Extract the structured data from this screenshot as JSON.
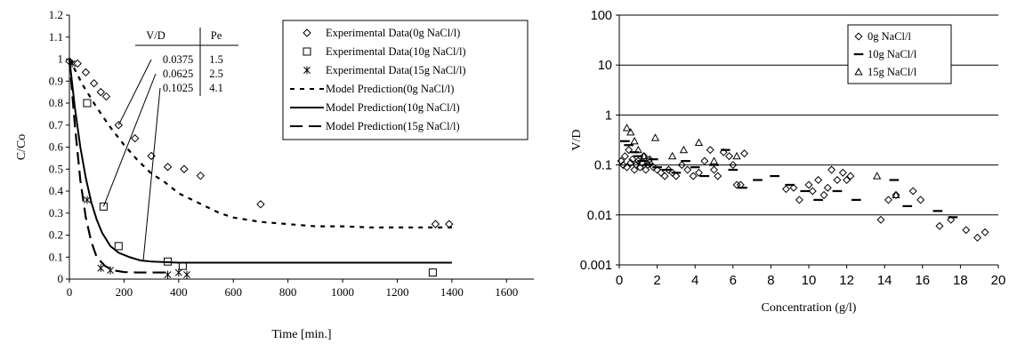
{
  "chart_data": [
    {
      "type": "scatter",
      "xlabel": "Time [min.]",
      "ylabel": "C/Co",
      "xlim": [
        0,
        1700
      ],
      "ylim": [
        0,
        1.2
      ],
      "xticks": [
        0,
        200,
        400,
        600,
        800,
        1000,
        1200,
        1400,
        1600
      ],
      "yticks": [
        0,
        0.1,
        0.2,
        0.3,
        0.4,
        0.5,
        0.6,
        0.7,
        0.8,
        0.9,
        1,
        1.1,
        1.2
      ],
      "grid": false,
      "legend_placement": "top-right",
      "series": [
        {
          "name": "Experimental Data(0g NaCl/l)",
          "kind": "scatter",
          "marker": "diamond",
          "x": [
            0,
            30,
            60,
            90,
            115,
            135,
            180,
            240,
            300,
            360,
            420,
            480,
            700,
            1340,
            1390
          ],
          "y": [
            0.99,
            0.98,
            0.94,
            0.89,
            0.85,
            0.83,
            0.7,
            0.64,
            0.56,
            0.51,
            0.5,
            0.47,
            0.34,
            0.25,
            0.25
          ]
        },
        {
          "name": "Experimental Data(10g NaCl/l)",
          "kind": "scatter",
          "marker": "square",
          "x": [
            65,
            125,
            180,
            360,
            415,
            1330
          ],
          "y": [
            0.8,
            0.33,
            0.15,
            0.08,
            0.06,
            0.03
          ]
        },
        {
          "name": "Experimental Data(15g NaCl/l)",
          "kind": "scatter",
          "marker": "asterisk",
          "x": [
            10,
            65,
            115,
            150,
            360,
            400,
            430
          ],
          "y": [
            0.98,
            0.36,
            0.05,
            0.04,
            0.02,
            0.03,
            0.02
          ]
        },
        {
          "name": "Model Prediction(0g NaCl/l)",
          "kind": "line",
          "dash": "short",
          "x": [
            0,
            50,
            100,
            150,
            200,
            250,
            300,
            350,
            400,
            450,
            500,
            550,
            600,
            700,
            800,
            900,
            1000,
            1100,
            1200,
            1300,
            1400
          ],
          "y": [
            1.0,
            0.88,
            0.78,
            0.69,
            0.61,
            0.54,
            0.48,
            0.44,
            0.39,
            0.36,
            0.33,
            0.3,
            0.28,
            0.26,
            0.25,
            0.24,
            0.24,
            0.235,
            0.235,
            0.235,
            0.235
          ]
        },
        {
          "name": "Model Prediction(10g NaCl/l)",
          "kind": "line",
          "dash": "solid",
          "x": [
            0,
            20,
            40,
            60,
            80,
            100,
            120,
            150,
            180,
            220,
            260,
            300,
            400,
            600,
            1000,
            1400
          ],
          "y": [
            1.0,
            0.78,
            0.6,
            0.46,
            0.35,
            0.27,
            0.21,
            0.15,
            0.12,
            0.1,
            0.085,
            0.08,
            0.075,
            0.075,
            0.075,
            0.075
          ]
        },
        {
          "name": "Model Prediction(15g NaCl/l)",
          "kind": "line",
          "dash": "long",
          "x": [
            0,
            20,
            40,
            60,
            80,
            100,
            130,
            160,
            200,
            250,
            300,
            360
          ],
          "y": [
            1.0,
            0.7,
            0.45,
            0.28,
            0.17,
            0.1,
            0.06,
            0.04,
            0.032,
            0.03,
            0.03,
            0.03
          ]
        }
      ],
      "inset_table": {
        "headers": [
          "V/D",
          "Pe"
        ],
        "rows": [
          [
            "0.0375",
            "1.5"
          ],
          [
            "0.0625",
            "2.5"
          ],
          [
            "0.1025",
            "4.1"
          ]
        ],
        "pointers": [
          {
            "row": 0,
            "x": 180,
            "y": 0.7
          },
          {
            "row": 1,
            "x": 125,
            "y": 0.33
          },
          {
            "row": 2,
            "x": 270,
            "y": 0.08
          }
        ]
      }
    },
    {
      "type": "scatter",
      "xlabel": "Concentration (g/l)",
      "ylabel": "V/D",
      "xlim": [
        0,
        20
      ],
      "ylim": [
        0.001,
        100
      ],
      "yscale": "log",
      "xticks": [
        0,
        2,
        4,
        6,
        8,
        10,
        12,
        14,
        16,
        18,
        20
      ],
      "yticks": [
        0.001,
        0.01,
        0.1,
        1,
        10,
        100
      ],
      "ytick_labels": [
        "0.001",
        "0.01",
        "0.1",
        "1",
        "10",
        "100"
      ],
      "grid": "horizontal",
      "legend_placement": "top-right",
      "series": [
        {
          "name": "0g NaCl/l",
          "marker": "diamond",
          "x": [
            0.1,
            0.2,
            0.3,
            0.4,
            0.5,
            0.6,
            0.7,
            0.8,
            0.9,
            1.0,
            1.1,
            1.2,
            1.3,
            1.4,
            1.5,
            1.6,
            1.8,
            2.0,
            2.2,
            2.4,
            2.6,
            2.8,
            3.0,
            3.3,
            3.6,
            3.9,
            4.2,
            4.5,
            4.8,
            5.0,
            5.2,
            5.5,
            5.8,
            6.0,
            6.2,
            6.4,
            6.6,
            8.8,
            9.2,
            9.5,
            10.0,
            10.2,
            10.5,
            10.8,
            11.0,
            11.2,
            11.5,
            11.8,
            12.0,
            12.2,
            13.8,
            14.2,
            14.6,
            15.5,
            15.9,
            16.9,
            17.5,
            18.3,
            18.9,
            19.3
          ],
          "y": [
            0.12,
            0.1,
            0.15,
            0.09,
            0.2,
            0.11,
            0.13,
            0.08,
            0.1,
            0.12,
            0.09,
            0.11,
            0.15,
            0.08,
            0.1,
            0.13,
            0.09,
            0.08,
            0.07,
            0.06,
            0.08,
            0.07,
            0.06,
            0.1,
            0.08,
            0.06,
            0.07,
            0.12,
            0.2,
            0.08,
            0.06,
            0.18,
            0.15,
            0.1,
            0.04,
            0.04,
            0.17,
            0.033,
            0.035,
            0.02,
            0.04,
            0.03,
            0.05,
            0.025,
            0.035,
            0.08,
            0.05,
            0.07,
            0.05,
            0.06,
            0.008,
            0.02,
            0.025,
            0.03,
            0.02,
            0.006,
            0.008,
            0.005,
            0.0035,
            0.0045
          ]
        },
        {
          "name": "10g NaCl/l",
          "marker": "dash",
          "x": [
            0.3,
            0.5,
            0.8,
            1.0,
            1.2,
            1.5,
            1.8,
            2.0,
            2.5,
            3.0,
            3.5,
            4.0,
            4.5,
            5.0,
            5.6,
            6.0,
            6.5,
            7.3,
            8.2,
            9.0,
            9.8,
            10.5,
            11.5,
            12.5,
            14.5,
            15.2,
            16.8,
            17.6
          ],
          "y": [
            0.3,
            0.25,
            0.18,
            0.15,
            0.12,
            0.1,
            0.13,
            0.09,
            0.08,
            0.07,
            0.12,
            0.09,
            0.06,
            0.1,
            0.2,
            0.08,
            0.035,
            0.05,
            0.06,
            0.04,
            0.03,
            0.02,
            0.03,
            0.02,
            0.05,
            0.015,
            0.012,
            0.009
          ]
        },
        {
          "name": "15g NaCl/l",
          "marker": "triangle",
          "x": [
            0.4,
            0.6,
            0.8,
            1.0,
            1.3,
            1.6,
            1.9,
            2.8,
            3.4,
            4.2,
            5.0,
            6.2,
            13.6,
            14.6
          ],
          "y": [
            0.55,
            0.45,
            0.3,
            0.2,
            0.15,
            0.12,
            0.35,
            0.15,
            0.2,
            0.28,
            0.12,
            0.15,
            0.06,
            0.025
          ]
        }
      ]
    }
  ]
}
